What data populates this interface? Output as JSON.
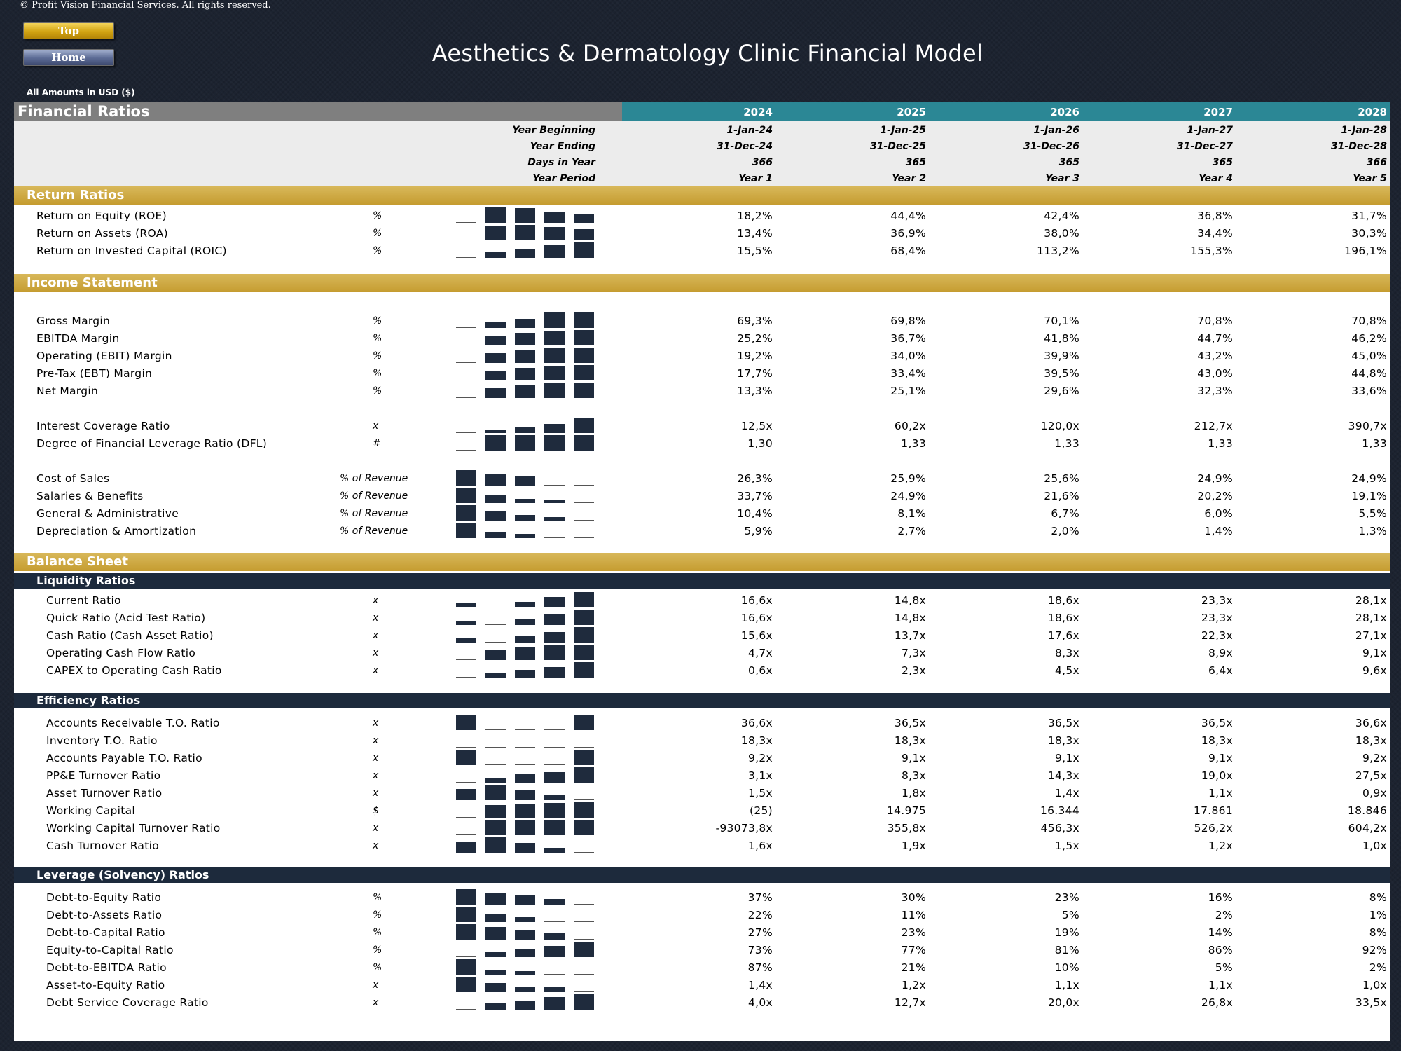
{
  "copyright": "© Profit Vision Financial Services. All rights reserved.",
  "nav": {
    "top": "Top",
    "home": "Home"
  },
  "page_title": "Aesthetics & Dermatology Clinic Financial Model",
  "amounts_note": "All Amounts in  USD ($)",
  "colors": {
    "accent_teal": "#2b8795",
    "section_gold": "#c59c30",
    "navy": "#1d2a3c",
    "sparkbar": "#1f2b3d"
  },
  "header": {
    "title": "Financial Ratios",
    "years": [
      "2024",
      "2025",
      "2026",
      "2027",
      "2028"
    ],
    "sub_labels": [
      "Year Beginning",
      "Year Ending",
      "Days in Year",
      "Year Period"
    ],
    "sub_rows": [
      [
        "1-Jan-24",
        "1-Jan-25",
        "1-Jan-26",
        "1-Jan-27",
        "1-Jan-28"
      ],
      [
        "31-Dec-24",
        "31-Dec-25",
        "31-Dec-26",
        "31-Dec-27",
        "31-Dec-28"
      ],
      [
        "366",
        "365",
        "365",
        "365",
        "366"
      ],
      [
        "Year 1",
        "Year 2",
        "Year 3",
        "Year 4",
        "Year 5"
      ]
    ]
  },
  "sections": [
    {
      "title": "Return Ratios",
      "rows": [
        {
          "label": "Return on Equity (ROE)",
          "unit": "%",
          "values": [
            "18,2%",
            "44,4%",
            "42,4%",
            "36,8%",
            "31,7%"
          ]
        },
        {
          "label": "Return on Assets (ROA)",
          "unit": "%",
          "values": [
            "13,4%",
            "36,9%",
            "38,0%",
            "34,4%",
            "30,3%"
          ]
        },
        {
          "label": "Return on Invested Capital (ROIC)",
          "unit": "%",
          "values": [
            "15,5%",
            "68,4%",
            "113,2%",
            "155,3%",
            "196,1%"
          ]
        }
      ]
    },
    {
      "title": "Income Statement",
      "rows": [
        {
          "label": "Gross Margin",
          "unit": "%",
          "values": [
            "69,3%",
            "69,8%",
            "70,1%",
            "70,8%",
            "70,8%"
          ]
        },
        {
          "label": "EBITDA Margin",
          "unit": "%",
          "values": [
            "25,2%",
            "36,7%",
            "41,8%",
            "44,7%",
            "46,2%"
          ]
        },
        {
          "label": "Operating (EBIT) Margin",
          "unit": "%",
          "values": [
            "19,2%",
            "34,0%",
            "39,9%",
            "43,2%",
            "45,0%"
          ]
        },
        {
          "label": "Pre-Tax (EBT) Margin",
          "unit": "%",
          "values": [
            "17,7%",
            "33,4%",
            "39,5%",
            "43,0%",
            "44,8%"
          ]
        },
        {
          "label": "Net Margin",
          "unit": "%",
          "values": [
            "13,3%",
            "25,1%",
            "29,6%",
            "32,3%",
            "33,6%"
          ]
        },
        {
          "label": "Interest Coverage Ratio",
          "unit": "x",
          "values": [
            "12,5x",
            "60,2x",
            "120,0x",
            "212,7x",
            "390,7x"
          ]
        },
        {
          "label": "Degree of Financial Leverage Ratio (DFL)",
          "unit": "#",
          "values": [
            "1,30",
            "1,33",
            "1,33",
            "1,33",
            "1,33"
          ]
        },
        {
          "label": "Cost of Sales",
          "unit": "% of Revenue",
          "values": [
            "26,3%",
            "25,9%",
            "25,6%",
            "24,9%",
            "24,9%"
          ]
        },
        {
          "label": "Salaries & Benefits",
          "unit": "% of Revenue",
          "values": [
            "33,7%",
            "24,9%",
            "21,6%",
            "20,2%",
            "19,1%"
          ]
        },
        {
          "label": "General & Administrative",
          "unit": "% of Revenue",
          "values": [
            "10,4%",
            "8,1%",
            "6,7%",
            "6,0%",
            "5,5%"
          ]
        },
        {
          "label": "Depreciation & Amortization",
          "unit": "% of Revenue",
          "values": [
            "5,9%",
            "2,7%",
            "2,0%",
            "1,4%",
            "1,3%"
          ]
        }
      ]
    },
    {
      "title": "Balance Sheet",
      "subsections": [
        {
          "title": "Liquidity Ratios",
          "rows": [
            {
              "label": "Current Ratio",
              "unit": "x",
              "values": [
                "16,6x",
                "14,8x",
                "18,6x",
                "23,3x",
                "28,1x"
              ]
            },
            {
              "label": "Quick Ratio (Acid Test Ratio)",
              "unit": "x",
              "values": [
                "16,6x",
                "14,8x",
                "18,6x",
                "23,3x",
                "28,1x"
              ]
            },
            {
              "label": "Cash Ratio (Cash Asset Ratio)",
              "unit": "x",
              "values": [
                "15,6x",
                "13,7x",
                "17,6x",
                "22,3x",
                "27,1x"
              ]
            },
            {
              "label": "Operating Cash Flow Ratio",
              "unit": "x",
              "values": [
                "4,7x",
                "7,3x",
                "8,3x",
                "8,9x",
                "9,1x"
              ]
            },
            {
              "label": "CAPEX to Operating Cash Ratio",
              "unit": "x",
              "values": [
                "0,6x",
                "2,3x",
                "4,5x",
                "6,4x",
                "9,6x"
              ]
            }
          ]
        },
        {
          "title": "Efficiency Ratios",
          "rows": [
            {
              "label": "Accounts Receivable T.O. Ratio",
              "unit": "x",
              "values": [
                "36,6x",
                "36,5x",
                "36,5x",
                "36,5x",
                "36,6x"
              ]
            },
            {
              "label": "Inventory T.O. Ratio",
              "unit": "x",
              "values": [
                "18,3x",
                "18,3x",
                "18,3x",
                "18,3x",
                "18,3x"
              ]
            },
            {
              "label": "Accounts Payable T.O. Ratio",
              "unit": "x",
              "values": [
                "9,2x",
                "9,1x",
                "9,1x",
                "9,1x",
                "9,2x"
              ]
            },
            {
              "label": "PP&E Turnover Ratio",
              "unit": "x",
              "values": [
                "3,1x",
                "8,3x",
                "14,3x",
                "19,0x",
                "27,5x"
              ]
            },
            {
              "label": "Asset Turnover Ratio",
              "unit": "x",
              "values": [
                "1,5x",
                "1,8x",
                "1,4x",
                "1,1x",
                "0,9x"
              ]
            },
            {
              "label": "Working Capital",
              "unit": "$",
              "values": [
                "(25)",
                "14.975",
                "16.344",
                "17.861",
                "18.846"
              ]
            },
            {
              "label": "Working Capital Turnover Ratio",
              "unit": "x",
              "values": [
                "-93073,8x",
                "355,8x",
                "456,3x",
                "526,2x",
                "604,2x"
              ]
            },
            {
              "label": "Cash Turnover Ratio",
              "unit": "x",
              "values": [
                "1,6x",
                "1,9x",
                "1,5x",
                "1,2x",
                "1,0x"
              ]
            }
          ]
        },
        {
          "title": "Leverage (Solvency) Ratios",
          "rows": [
            {
              "label": "Debt-to-Equity Ratio",
              "unit": "%",
              "values": [
                "37%",
                "30%",
                "23%",
                "16%",
                "8%"
              ]
            },
            {
              "label": "Debt-to-Assets Ratio",
              "unit": "%",
              "values": [
                "22%",
                "11%",
                "5%",
                "2%",
                "1%"
              ]
            },
            {
              "label": "Debt-to-Capital Ratio",
              "unit": "%",
              "values": [
                "27%",
                "23%",
                "19%",
                "14%",
                "8%"
              ]
            },
            {
              "label": "Equity-to-Capital Ratio",
              "unit": "%",
              "values": [
                "73%",
                "77%",
                "81%",
                "86%",
                "92%"
              ]
            },
            {
              "label": "Debt-to-EBITDA Ratio",
              "unit": "%",
              "values": [
                "87%",
                "21%",
                "10%",
                "5%",
                "2%"
              ]
            },
            {
              "label": "Asset-to-Equity Ratio",
              "unit": "x",
              "values": [
                "1,4x",
                "1,2x",
                "1,1x",
                "1,1x",
                "1,0x"
              ]
            },
            {
              "label": "Debt Service Coverage Ratio",
              "unit": "x",
              "values": [
                "4,0x",
                "12,7x",
                "20,0x",
                "26,8x",
                "33,5x"
              ]
            }
          ]
        }
      ]
    }
  ]
}
